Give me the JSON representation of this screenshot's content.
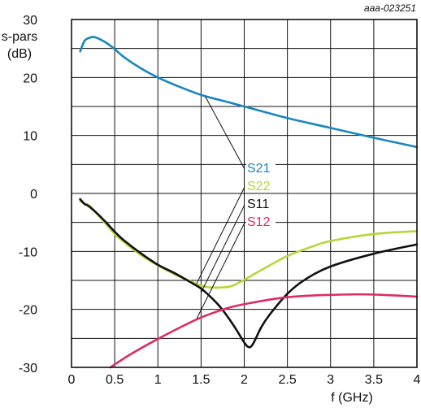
{
  "figure_id": "aaa-023251",
  "chart_data": {
    "type": "line",
    "ylabel": "s-pars\n(dB)",
    "xlabel": "f (GHz)",
    "xlim": [
      0,
      4
    ],
    "ylim": [
      -30,
      30
    ],
    "x_ticks": [
      "0",
      "0.5",
      "1",
      "1.5",
      "2",
      "2.5",
      "3",
      "3.5",
      "4"
    ],
    "y_ticks": [
      "30",
      "20",
      "10",
      "0",
      "-10",
      "-20",
      "-30"
    ],
    "grid": true,
    "series": [
      {
        "name": "S21",
        "color": "#1a86c0",
        "points": [
          [
            0.1,
            24.5
          ],
          [
            0.15,
            26.3
          ],
          [
            0.2,
            26.8
          ],
          [
            0.25,
            27.0
          ],
          [
            0.3,
            26.8
          ],
          [
            0.4,
            26.0
          ],
          [
            0.5,
            24.9
          ],
          [
            0.6,
            23.6
          ],
          [
            0.8,
            21.6
          ],
          [
            1.0,
            20.0
          ],
          [
            1.2,
            18.7
          ],
          [
            1.5,
            17.0
          ],
          [
            1.8,
            15.8
          ],
          [
            2.0,
            15.0
          ],
          [
            2.5,
            13.0
          ],
          [
            3.0,
            11.3
          ],
          [
            3.5,
            9.6
          ],
          [
            4.0,
            8.0
          ]
        ]
      },
      {
        "name": "S22",
        "color": "#bcd33a",
        "points": [
          [
            0.1,
            -1.3
          ],
          [
            0.15,
            -1.8
          ],
          [
            0.2,
            -2.0
          ],
          [
            0.3,
            -3.6
          ],
          [
            0.4,
            -5.3
          ],
          [
            0.5,
            -7.0
          ],
          [
            0.6,
            -8.3
          ],
          [
            0.8,
            -10.6
          ],
          [
            1.0,
            -12.4
          ],
          [
            1.2,
            -14.0
          ],
          [
            1.4,
            -15.3
          ],
          [
            1.5,
            -15.9
          ],
          [
            1.6,
            -16.2
          ],
          [
            1.75,
            -16.2
          ],
          [
            1.85,
            -16.0
          ],
          [
            2.0,
            -14.9
          ],
          [
            2.2,
            -13.2
          ],
          [
            2.5,
            -10.8
          ],
          [
            2.8,
            -9.1
          ],
          [
            3.0,
            -8.2
          ],
          [
            3.5,
            -7.0
          ],
          [
            4.0,
            -6.5
          ]
        ]
      },
      {
        "name": "S11",
        "color": "#111111",
        "points": [
          [
            0.1,
            -1.0
          ],
          [
            0.15,
            -1.8
          ],
          [
            0.2,
            -2.2
          ],
          [
            0.3,
            -3.5
          ],
          [
            0.4,
            -5.0
          ],
          [
            0.5,
            -6.6
          ],
          [
            0.6,
            -8.0
          ],
          [
            0.8,
            -10.3
          ],
          [
            1.0,
            -12.3
          ],
          [
            1.2,
            -13.8
          ],
          [
            1.4,
            -15.5
          ],
          [
            1.5,
            -16.4
          ],
          [
            1.6,
            -17.7
          ],
          [
            1.7,
            -19.2
          ],
          [
            1.8,
            -21.1
          ],
          [
            1.9,
            -23.3
          ],
          [
            2.0,
            -25.7
          ],
          [
            2.05,
            -26.5
          ],
          [
            2.1,
            -26.0
          ],
          [
            2.2,
            -23.0
          ],
          [
            2.3,
            -20.8
          ],
          [
            2.5,
            -17.3
          ],
          [
            2.7,
            -14.9
          ],
          [
            3.0,
            -12.6
          ],
          [
            3.5,
            -10.4
          ],
          [
            4.0,
            -8.8
          ]
        ]
      },
      {
        "name": "S12",
        "color": "#de2a6b",
        "points": [
          [
            0.45,
            -30.0
          ],
          [
            0.5,
            -29.5
          ],
          [
            0.7,
            -27.6
          ],
          [
            1.0,
            -25.1
          ],
          [
            1.3,
            -22.8
          ],
          [
            1.5,
            -21.4
          ],
          [
            1.8,
            -19.8
          ],
          [
            2.0,
            -19.1
          ],
          [
            2.3,
            -18.3
          ],
          [
            2.5,
            -17.9
          ],
          [
            2.8,
            -17.6
          ],
          [
            3.0,
            -17.5
          ],
          [
            3.3,
            -17.4
          ],
          [
            3.6,
            -17.5
          ],
          [
            4.0,
            -17.8
          ]
        ]
      }
    ],
    "annotations": [
      {
        "label": "S21",
        "color": "#1a86c0",
        "target": [
          1.55,
          16.7
        ]
      },
      {
        "label": "S22",
        "color": "#bcd33a",
        "target": [
          1.45,
          -15.5
        ]
      },
      {
        "label": "S11",
        "color": "#111111",
        "target": [
          1.5,
          -17.1
        ]
      },
      {
        "label": "S12",
        "color": "#de2a6b",
        "target": [
          1.45,
          -21.6
        ]
      }
    ]
  }
}
